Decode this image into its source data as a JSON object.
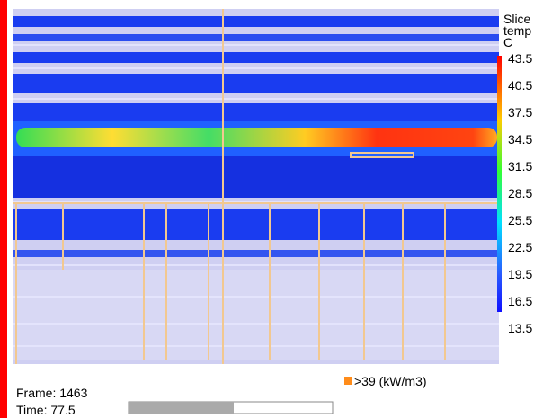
{
  "colorbar": {
    "title": [
      "Slice",
      "temp",
      "C"
    ],
    "labels": [
      43.5,
      40.5,
      37.5,
      34.5,
      31.5,
      28.5,
      25.5,
      22.5,
      19.5,
      16.5,
      13.5
    ]
  },
  "legend": ">39 (kW/m3)",
  "status": {
    "frame": "Frame: 1463",
    "time": "Time: 77.5"
  }
}
